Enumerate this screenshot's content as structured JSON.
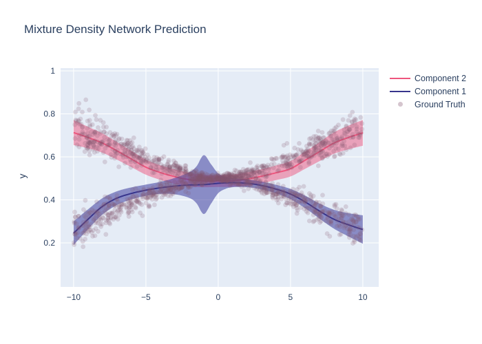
{
  "title": "Mixture Density Network Prediction",
  "colors": {
    "text": "#2a3f5f",
    "plot_background": "#e5ecf6",
    "grid": "#ffffff",
    "component2": "#ee557d",
    "component1": "#37348c",
    "ground_truth": "rgba(130,85,112,0.2)"
  },
  "legend": {
    "items": [
      {
        "label": "Component 2",
        "swatch": "line",
        "color": "#ee557d"
      },
      {
        "label": "Component 1",
        "swatch": "line",
        "color": "#37348c"
      },
      {
        "label": "Ground Truth",
        "swatch": "dot",
        "color": "rgba(135,90,115,0.35)"
      }
    ]
  },
  "chart_data": {
    "type": "line",
    "title": "Mixture Density Network Prediction",
    "xlabel": "",
    "ylabel": "y",
    "xlim": [
      -10.9,
      11.1
    ],
    "ylim": [
      -0.005,
      1.013
    ],
    "grid": true,
    "legend_position": "right-outside",
    "x_ticks": [
      {
        "v": -10,
        "label": "−10"
      },
      {
        "v": -5,
        "label": "−5"
      },
      {
        "v": 0,
        "label": "0"
      },
      {
        "v": 5,
        "label": "5"
      },
      {
        "v": 10,
        "label": "10"
      }
    ],
    "y_ticks": [
      {
        "v": 0.2,
        "label": "0.2"
      },
      {
        "v": 0.4,
        "label": "0.4"
      },
      {
        "v": 0.6,
        "label": "0.6"
      },
      {
        "v": 0.8,
        "label": "0.8"
      },
      {
        "v": 1.0,
        "label": "1"
      }
    ],
    "series": [
      {
        "name": "Component 2",
        "type": "line_with_band",
        "color": "#ee557d",
        "band_color": "rgba(238,85,125,0.5)",
        "x": [
          -10,
          -9,
          -8,
          -7,
          -6,
          -5,
          -4,
          -3,
          -2,
          -1,
          0,
          1,
          2,
          3,
          4,
          5,
          6,
          7,
          8,
          9,
          10
        ],
        "y": [
          0.713,
          0.69,
          0.664,
          0.628,
          0.59,
          0.552,
          0.527,
          0.508,
          0.494,
          0.488,
          0.487,
          0.489,
          0.497,
          0.51,
          0.526,
          0.545,
          0.584,
          0.624,
          0.664,
          0.69,
          0.712
        ],
        "band_half_width": [
          0.058,
          0.05,
          0.045,
          0.041,
          0.038,
          0.035,
          0.034,
          0.034,
          0.032,
          0.029,
          0.027,
          0.028,
          0.031,
          0.033,
          0.034,
          0.036,
          0.04,
          0.044,
          0.05,
          0.055,
          0.06
        ]
      },
      {
        "name": "Component 1",
        "type": "line_with_band",
        "color": "#37348c",
        "band_color": "rgba(62,62,158,0.55)",
        "x": [
          -10,
          -9,
          -8,
          -7,
          -6,
          -5,
          -4,
          -3,
          -2,
          -1.5,
          -1,
          -0.5,
          0,
          0.5,
          1,
          2,
          3,
          4,
          5,
          6,
          7,
          8,
          9,
          10
        ],
        "y": [
          0.245,
          0.31,
          0.37,
          0.408,
          0.43,
          0.445,
          0.456,
          0.464,
          0.469,
          0.47,
          0.471,
          0.474,
          0.477,
          0.479,
          0.48,
          0.477,
          0.467,
          0.45,
          0.427,
          0.391,
          0.348,
          0.31,
          0.284,
          0.262
        ],
        "band_half_width": [
          0.055,
          0.046,
          0.038,
          0.032,
          0.028,
          0.026,
          0.028,
          0.038,
          0.06,
          0.086,
          0.137,
          0.092,
          0.046,
          0.028,
          0.021,
          0.018,
          0.018,
          0.02,
          0.024,
          0.029,
          0.035,
          0.044,
          0.054,
          0.066
        ]
      },
      {
        "name": "Ground Truth",
        "type": "scatter_generated",
        "marker_color": "rgba(130,85,112,0.2)",
        "marker_radius": 3.4,
        "n": 1600,
        "seed": 20,
        "x_range": [
          -10,
          10
        ],
        "center": 0.5,
        "branch_offset": 0.25,
        "branch_power": 1.5,
        "noise_base": 0.008,
        "noise_scale": 0.042,
        "noise_power": 1.2,
        "y_clamp": [
          0.04,
          0.97
        ]
      }
    ]
  }
}
